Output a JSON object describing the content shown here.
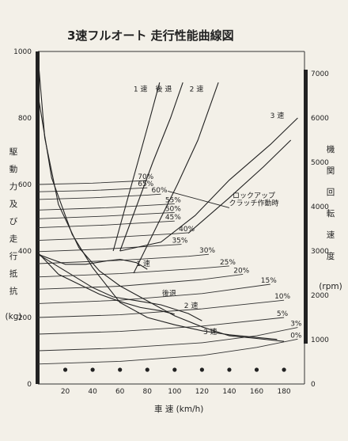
{
  "chart_data": {
    "type": "line",
    "title": "3速フルオート 走行性能曲線図",
    "xlabel": "車 速 (km/h)",
    "xticks": [
      20,
      40,
      60,
      80,
      100,
      120,
      140,
      160,
      180
    ],
    "xlim": [
      0,
      195
    ],
    "y_left": {
      "label_chars": [
        "駆",
        "動",
        "力",
        "及",
        "び",
        "走",
        "行",
        "抵",
        "抗"
      ],
      "unit": "(kg)",
      "ticks": [
        0,
        200,
        400,
        600,
        800,
        1000
      ],
      "lim": [
        0,
        1000
      ]
    },
    "y_right": {
      "label_chars": [
        "機",
        "関",
        "回",
        "転",
        "速",
        "度"
      ],
      "unit": "(rpm)",
      "ticks": [
        0,
        1000,
        2000,
        3000,
        4000,
        5000,
        6000,
        7000
      ],
      "lim": [
        0,
        7500
      ]
    },
    "series": [
      {
        "name": "1 速",
        "axis": "right",
        "points": [
          [
            55,
            3000
          ],
          [
            64,
            4000
          ],
          [
            73,
            5000
          ],
          [
            82,
            6000
          ],
          [
            89,
            6800
          ]
        ]
      },
      {
        "name": "後退",
        "axis": "right",
        "points": [
          [
            60,
            3000
          ],
          [
            72,
            4000
          ],
          [
            84,
            5000
          ],
          [
            97,
            6000
          ],
          [
            106,
            6800
          ]
        ]
      },
      {
        "name": "2 速",
        "axis": "right",
        "points": [
          [
            70,
            2500
          ],
          [
            86,
            3500
          ],
          [
            102,
            4500
          ],
          [
            117,
            5500
          ],
          [
            132,
            6800
          ]
        ]
      },
      {
        "name": "3 速",
        "axis": "right",
        "points": [
          [
            60,
            3000
          ],
          [
            90,
            3200
          ],
          [
            115,
            3800
          ],
          [
            140,
            4600
          ],
          [
            170,
            5400
          ],
          [
            190,
            6000
          ]
        ]
      },
      {
        "name": "ロックアップ クラッチ作動時",
        "axis": "right",
        "points": [
          [
            110,
            3400
          ],
          [
            140,
            4200
          ],
          [
            165,
            4900
          ],
          [
            185,
            5500
          ]
        ]
      },
      {
        "name": "1 速 駆動力",
        "axis": "left",
        "points": [
          [
            0,
            390
          ],
          [
            10,
            375
          ],
          [
            20,
            360
          ],
          [
            35,
            360
          ],
          [
            50,
            370
          ],
          [
            60,
            375
          ],
          [
            72,
            365
          ],
          [
            80,
            345
          ]
        ]
      },
      {
        "name": "後退 駆動力",
        "axis": "left",
        "points": [
          [
            0,
            395
          ],
          [
            15,
            330
          ],
          [
            30,
            300
          ],
          [
            45,
            270
          ],
          [
            60,
            248
          ],
          [
            75,
            230
          ],
          [
            90,
            220
          ],
          [
            100,
            210
          ]
        ]
      },
      {
        "name": "2 速 駆動力",
        "axis": "left",
        "points": [
          [
            0,
            390
          ],
          [
            20,
            340
          ],
          [
            40,
            290
          ],
          [
            55,
            262
          ],
          [
            70,
            252
          ],
          [
            90,
            238
          ],
          [
            110,
            212
          ],
          [
            120,
            190
          ]
        ]
      },
      {
        "name": "3 速 駆動力",
        "axis": "left",
        "points": [
          [
            0,
            985
          ],
          [
            5,
            740
          ],
          [
            15,
            540
          ],
          [
            30,
            410
          ],
          [
            45,
            340
          ],
          [
            60,
            295
          ],
          [
            80,
            250
          ],
          [
            100,
            205
          ],
          [
            120,
            172
          ],
          [
            140,
            145
          ],
          [
            160,
            137
          ],
          [
            180,
            128
          ]
        ]
      },
      {
        "name": "3 速 駆動力 (下)",
        "axis": "left",
        "points": [
          [
            0,
            870
          ],
          [
            10,
            620
          ],
          [
            25,
            450
          ],
          [
            40,
            350
          ],
          [
            60,
            245
          ],
          [
            80,
            200
          ],
          [
            100,
            178
          ],
          [
            120,
            160
          ],
          [
            140,
            148
          ],
          [
            160,
            140
          ],
          [
            175,
            134
          ]
        ]
      }
    ],
    "resistance_curves": [
      {
        "grade": "70%",
        "points": [
          [
            0,
            600
          ],
          [
            40,
            604
          ],
          [
            80,
            612
          ]
        ]
      },
      {
        "grade": "65%",
        "points": [
          [
            0,
            578
          ],
          [
            40,
            582
          ],
          [
            80,
            590
          ]
        ]
      },
      {
        "grade": "60%",
        "points": [
          [
            0,
            555
          ],
          [
            40,
            560
          ],
          [
            80,
            568
          ],
          [
            90,
            571
          ]
        ]
      },
      {
        "grade": "55%",
        "points": [
          [
            0,
            523
          ],
          [
            50,
            530
          ],
          [
            100,
            542
          ]
        ]
      },
      {
        "grade": "50%",
        "points": [
          [
            0,
            497
          ],
          [
            50,
            505
          ],
          [
            100,
            516
          ]
        ]
      },
      {
        "grade": "45%",
        "points": [
          [
            0,
            470
          ],
          [
            50,
            478
          ],
          [
            100,
            490
          ]
        ]
      },
      {
        "grade": "40%",
        "points": [
          [
            0,
            432
          ],
          [
            50,
            440
          ],
          [
            100,
            452
          ],
          [
            110,
            455
          ]
        ]
      },
      {
        "grade": "35%",
        "points": [
          [
            0,
            398
          ],
          [
            50,
            406
          ],
          [
            105,
            420
          ]
        ]
      },
      {
        "grade": "30%",
        "points": [
          [
            0,
            362
          ],
          [
            60,
            372
          ],
          [
            110,
            384
          ],
          [
            125,
            390
          ]
        ]
      },
      {
        "grade": "25%",
        "points": [
          [
            0,
            322
          ],
          [
            60,
            332
          ],
          [
            120,
            348
          ],
          [
            140,
            355
          ]
        ]
      },
      {
        "grade": "20%",
        "points": [
          [
            0,
            285
          ],
          [
            60,
            294
          ],
          [
            120,
            314
          ],
          [
            150,
            330
          ]
        ]
      },
      {
        "grade": "15%",
        "points": [
          [
            0,
            242
          ],
          [
            60,
            252
          ],
          [
            120,
            272
          ],
          [
            170,
            300
          ]
        ]
      },
      {
        "grade": "10%",
        "points": [
          [
            0,
            200
          ],
          [
            60,
            208
          ],
          [
            120,
            226
          ],
          [
            180,
            252
          ]
        ]
      },
      {
        "grade": "5%",
        "points": [
          [
            0,
            150
          ],
          [
            60,
            158
          ],
          [
            120,
            174
          ],
          [
            180,
            200
          ]
        ]
      },
      {
        "grade": "3%",
        "points": [
          [
            0,
            100
          ],
          [
            60,
            108
          ],
          [
            120,
            124
          ],
          [
            160,
            145
          ],
          [
            190,
            170
          ]
        ]
      },
      {
        "grade": "0%",
        "points": [
          [
            0,
            60
          ],
          [
            60,
            68
          ],
          [
            120,
            86
          ],
          [
            160,
            110
          ],
          [
            190,
            135
          ]
        ]
      }
    ],
    "labels": {
      "gear_top": [
        "1 速",
        "後 退",
        "2 速",
        "3 速"
      ],
      "lockup": [
        "ロックアップ",
        "クラッチ作動時"
      ],
      "gear_mid": [
        "1 速",
        "後退",
        "2 速",
        "3 速"
      ]
    },
    "grid": false
  }
}
